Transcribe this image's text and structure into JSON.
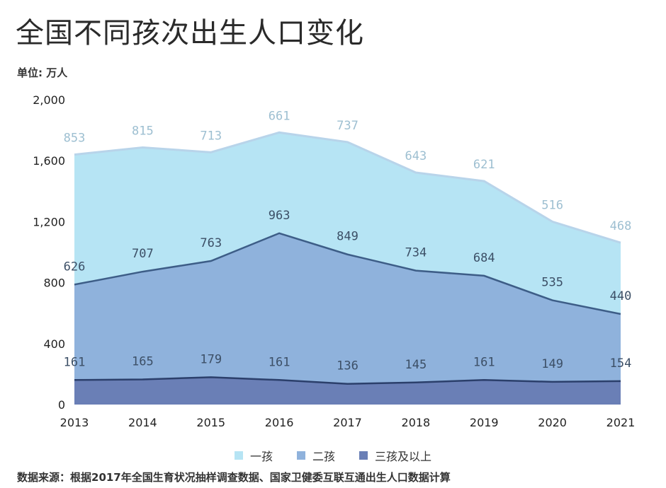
{
  "title": "全国不同孩次出生人口变化",
  "unit_label": "单位: 万人",
  "source": "数据来源：根据2017年全国生育状况抽样调查数据、国家卫健委互联互通出生人口数据计算",
  "colors": {
    "first_child": "#b6e4f4",
    "second_child": "#8fb2dc",
    "third_plus": "#6a7fb6",
    "first_line": "#b8d4ea",
    "second_line": "#3d5d87",
    "third_line": "#2b3f6b",
    "label_first": "#9dbfd1",
    "label_second": "#3c4f66",
    "label_third": "#3c4f66",
    "axis_text": "#222222"
  },
  "chart_data": {
    "type": "area",
    "stacked": true,
    "x": [
      "2013",
      "2014",
      "2015",
      "2016",
      "2017",
      "2018",
      "2019",
      "2020",
      "2021"
    ],
    "series": [
      {
        "name": "三孩及以上",
        "values": [
          161,
          165,
          179,
          161,
          136,
          145,
          161,
          149,
          154
        ]
      },
      {
        "name": "二孩",
        "values": [
          626,
          707,
          763,
          963,
          849,
          734,
          684,
          535,
          440
        ]
      },
      {
        "name": "一孩",
        "values": [
          853,
          815,
          713,
          661,
          737,
          643,
          621,
          516,
          468
        ]
      }
    ],
    "y_ticks": [
      "0",
      "400",
      "800",
      "1,200",
      "1,600",
      "2,000"
    ],
    "ylim": [
      0,
      2000
    ],
    "legend": [
      "一孩",
      "二孩",
      "三孩及以上"
    ],
    "legend_position": "bottom"
  }
}
